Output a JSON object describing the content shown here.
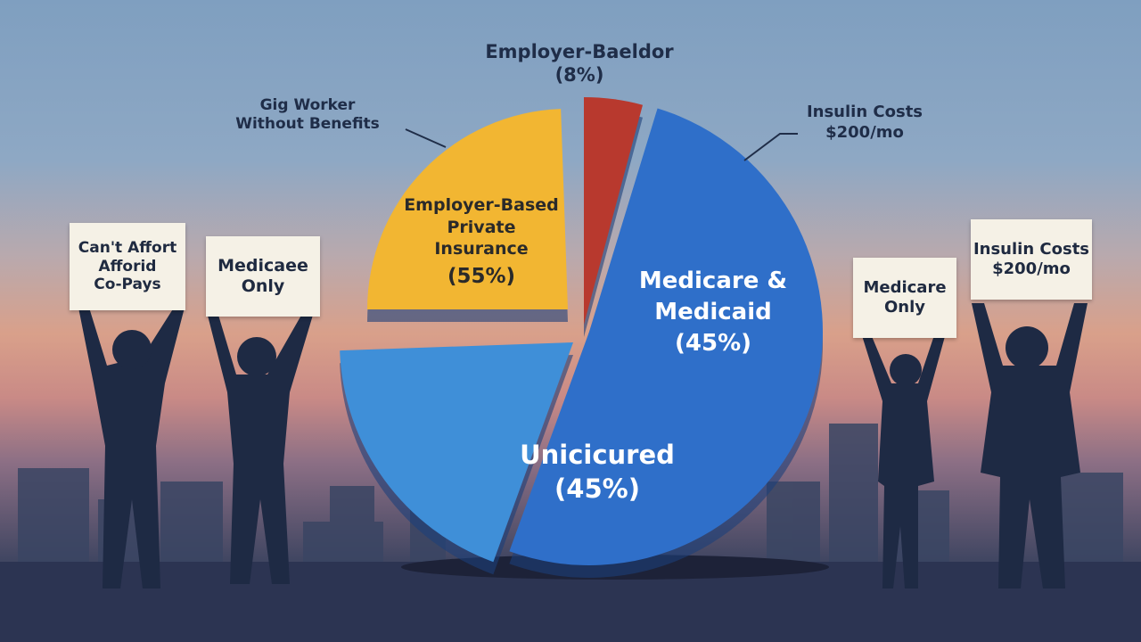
{
  "chart_data": {
    "type": "pie",
    "title": "",
    "slices": [
      {
        "label": "Employer-Based Private Insurance",
        "value": 55,
        "display": "(55%)",
        "color": "#f2b632"
      },
      {
        "label": "Employer-Baeldor",
        "value": 8,
        "display": "(8%)",
        "color": "#b8392e"
      },
      {
        "label": "Medicare & Medicaid",
        "value": 45,
        "display": "(45%)",
        "color": "#2f6fc9"
      },
      {
        "label": "Unicicured",
        "value": 45,
        "display": "(45%)",
        "color": "#3f8fd8"
      }
    ],
    "annotations": [
      "Gig Worker Without Benefits",
      "Insulin Costs $200/mo"
    ]
  },
  "labels": {
    "top_name": "Employer-Baeldor",
    "top_pct": "(8%)",
    "gig_line1": "Gig Worker",
    "gig_line2": "Without Benefits",
    "insulin_line1": "Insulin Costs",
    "insulin_line2": "$200/mo",
    "yellow_l1": "Employer-Based",
    "yellow_l2": "Private",
    "yellow_l3": "Insurance",
    "yellow_pct": "(55%)",
    "blue_l1": "Medicare &",
    "blue_l2": "Medicaid",
    "blue_pct": "(45%)",
    "light_l1": "Unicicured",
    "light_pct": "(45%)"
  },
  "signs": [
    {
      "l1": "Can't Affort",
      "l2": "Afforid",
      "l3": "Co-Pays"
    },
    {
      "l1": "Medicaee",
      "l2": "Only"
    },
    {
      "l1": "Medicare",
      "l2": "Only"
    },
    {
      "l1": "Insulin Costs",
      "l2": "$200/mo"
    }
  ]
}
